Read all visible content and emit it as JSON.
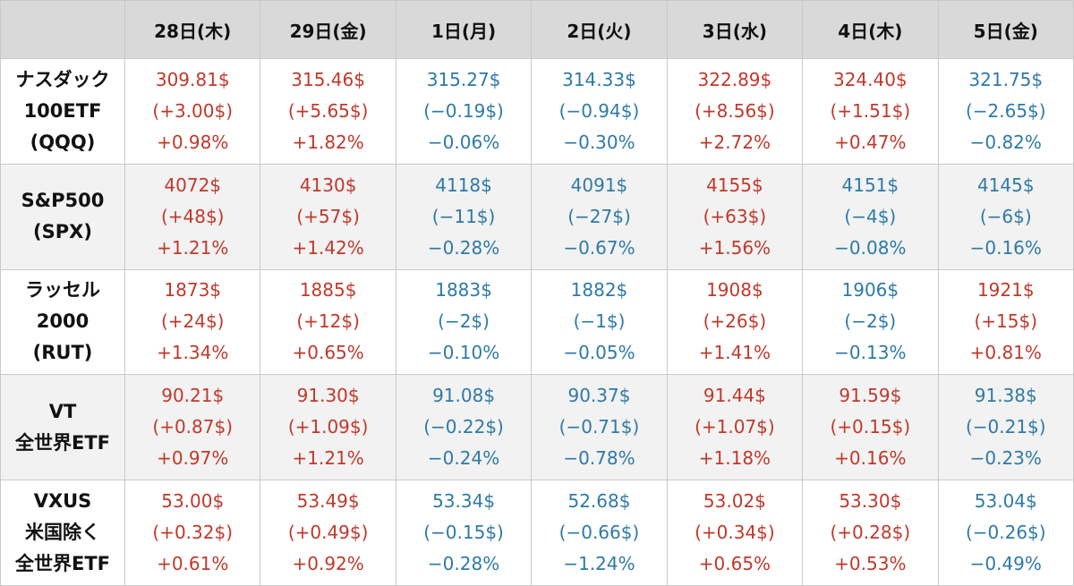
{
  "headers": [
    "",
    "28日(木)",
    "29日(金)",
    "1日(月)",
    "2日(火)",
    "3日(水)",
    "4日(木)",
    "5日(金)"
  ],
  "colors": {
    "up": "#c0392b",
    "down": "#2e7aa7",
    "header_bg": "#d9d9d9",
    "shade_bg": "#f2f2f2"
  },
  "rows": [
    {
      "label": [
        "ナスダック",
        "100ETF",
        "(QQQ)"
      ],
      "cells": [
        {
          "dir": "up",
          "price": "309.81$",
          "change": "(+3.00$)",
          "pct": "+0.98%"
        },
        {
          "dir": "up",
          "price": "315.46$",
          "change": "(+5.65$)",
          "pct": "+1.82%"
        },
        {
          "dir": "down",
          "price": "315.27$",
          "change": "(−0.19$)",
          "pct": "−0.06%"
        },
        {
          "dir": "down",
          "price": "314.33$",
          "change": "(−0.94$)",
          "pct": "−0.30%"
        },
        {
          "dir": "up",
          "price": "322.89$",
          "change": "(+8.56$)",
          "pct": "+2.72%"
        },
        {
          "dir": "up",
          "price": "324.40$",
          "change": "(+1.51$)",
          "pct": "+0.47%"
        },
        {
          "dir": "down",
          "price": "321.75$",
          "change": "(−2.65$)",
          "pct": "−0.82%"
        }
      ]
    },
    {
      "label": [
        "S&P500",
        "(SPX)"
      ],
      "cells": [
        {
          "dir": "up",
          "price": "4072$",
          "change": "(+48$)",
          "pct": "+1.21%"
        },
        {
          "dir": "up",
          "price": "4130$",
          "change": "(+57$)",
          "pct": "+1.42%"
        },
        {
          "dir": "down",
          "price": "4118$",
          "change": "(−11$)",
          "pct": "−0.28%"
        },
        {
          "dir": "down",
          "price": "4091$",
          "change": "(−27$)",
          "pct": "−0.67%"
        },
        {
          "dir": "up",
          "price": "4155$",
          "change": "(+63$)",
          "pct": "+1.56%"
        },
        {
          "dir": "down",
          "price": "4151$",
          "change": "(−4$)",
          "pct": "−0.08%"
        },
        {
          "dir": "down",
          "price": "4145$",
          "change": "(−6$)",
          "pct": "−0.16%"
        }
      ]
    },
    {
      "label": [
        "ラッセル",
        "2000",
        "(RUT)"
      ],
      "cells": [
        {
          "dir": "up",
          "price": "1873$",
          "change": "(+24$)",
          "pct": "+1.34%"
        },
        {
          "dir": "up",
          "price": "1885$",
          "change": "(+12$)",
          "pct": "+0.65%"
        },
        {
          "dir": "down",
          "price": "1883$",
          "change": "(−2$)",
          "pct": "−0.10%"
        },
        {
          "dir": "down",
          "price": "1882$",
          "change": "(−1$)",
          "pct": "−0.05%"
        },
        {
          "dir": "up",
          "price": "1908$",
          "change": "(+26$)",
          "pct": "+1.41%"
        },
        {
          "dir": "down",
          "price": "1906$",
          "change": "(−2$)",
          "pct": "−0.13%"
        },
        {
          "dir": "up",
          "price": "1921$",
          "change": "(+15$)",
          "pct": "+0.81%"
        }
      ]
    },
    {
      "label": [
        "VT",
        "全世界ETF"
      ],
      "cells": [
        {
          "dir": "up",
          "price": "90.21$",
          "change": "(+0.87$)",
          "pct": "+0.97%"
        },
        {
          "dir": "up",
          "price": "91.30$",
          "change": "(+1.09$)",
          "pct": "+1.21%"
        },
        {
          "dir": "down",
          "price": "91.08$",
          "change": "(−0.22$)",
          "pct": "−0.24%"
        },
        {
          "dir": "down",
          "price": "90.37$",
          "change": "(−0.71$)",
          "pct": "−0.78%"
        },
        {
          "dir": "up",
          "price": "91.44$",
          "change": "(+1.07$)",
          "pct": "+1.18%"
        },
        {
          "dir": "up",
          "price": "91.59$",
          "change": "(+0.15$)",
          "pct": "+0.16%"
        },
        {
          "dir": "down",
          "price": "91.38$",
          "change": "(−0.21$)",
          "pct": "−0.23%"
        }
      ]
    },
    {
      "label": [
        "VXUS",
        "米国除く",
        "全世界ETF"
      ],
      "cells": [
        {
          "dir": "up",
          "price": "53.00$",
          "change": "(+0.32$)",
          "pct": "+0.61%"
        },
        {
          "dir": "up",
          "price": "53.49$",
          "change": "(+0.49$)",
          "pct": "+0.92%"
        },
        {
          "dir": "down",
          "price": "53.34$",
          "change": "(−0.15$)",
          "pct": "−0.28%"
        },
        {
          "dir": "down",
          "price": "52.68$",
          "change": "(−0.66$)",
          "pct": "−1.24%"
        },
        {
          "dir": "up",
          "price": "53.02$",
          "change": "(+0.34$)",
          "pct": "+0.65%"
        },
        {
          "dir": "up",
          "price": "53.30$",
          "change": "(+0.28$)",
          "pct": "+0.53%"
        },
        {
          "dir": "down",
          "price": "53.04$",
          "change": "(−0.26$)",
          "pct": "−0.49%"
        }
      ]
    }
  ]
}
